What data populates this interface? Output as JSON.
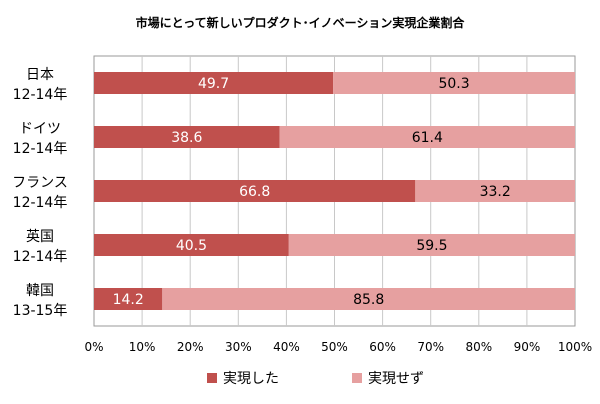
{
  "chart_data": {
    "type": "bar",
    "orientation": "horizontal",
    "stacked": true,
    "title": "市場にとって新しいプロダクト･イノベーション実現企業割合",
    "categories": [
      [
        "日本",
        "12-14年"
      ],
      [
        "ドイツ",
        "12-14年"
      ],
      [
        "フランス",
        "12-14年"
      ],
      [
        "英国",
        "12-14年"
      ],
      [
        "韓国",
        "13-15年"
      ]
    ],
    "series": [
      {
        "name": "実現した",
        "color": "#c0504d",
        "values": [
          49.7,
          38.6,
          66.8,
          40.5,
          14.2
        ],
        "labels": [
          "49.7",
          "38.6",
          "66.8",
          "40.5",
          "14.2"
        ]
      },
      {
        "name": "実現せず",
        "color": "#e6a0a0",
        "values": [
          50.3,
          61.4,
          33.2,
          59.5,
          85.8
        ],
        "labels": [
          "50.3",
          "61.4",
          "33.2",
          "59.5",
          "85.8"
        ]
      }
    ],
    "xlim": [
      0,
      100
    ],
    "xticks": [
      0,
      10,
      20,
      30,
      40,
      50,
      60,
      70,
      80,
      90,
      100
    ],
    "xtick_labels": [
      "0%",
      "10%",
      "20%",
      "30%",
      "40%",
      "50%",
      "60%",
      "70%",
      "80%",
      "90%",
      "100%"
    ],
    "grid": "vertical",
    "legend": "bottom"
  }
}
